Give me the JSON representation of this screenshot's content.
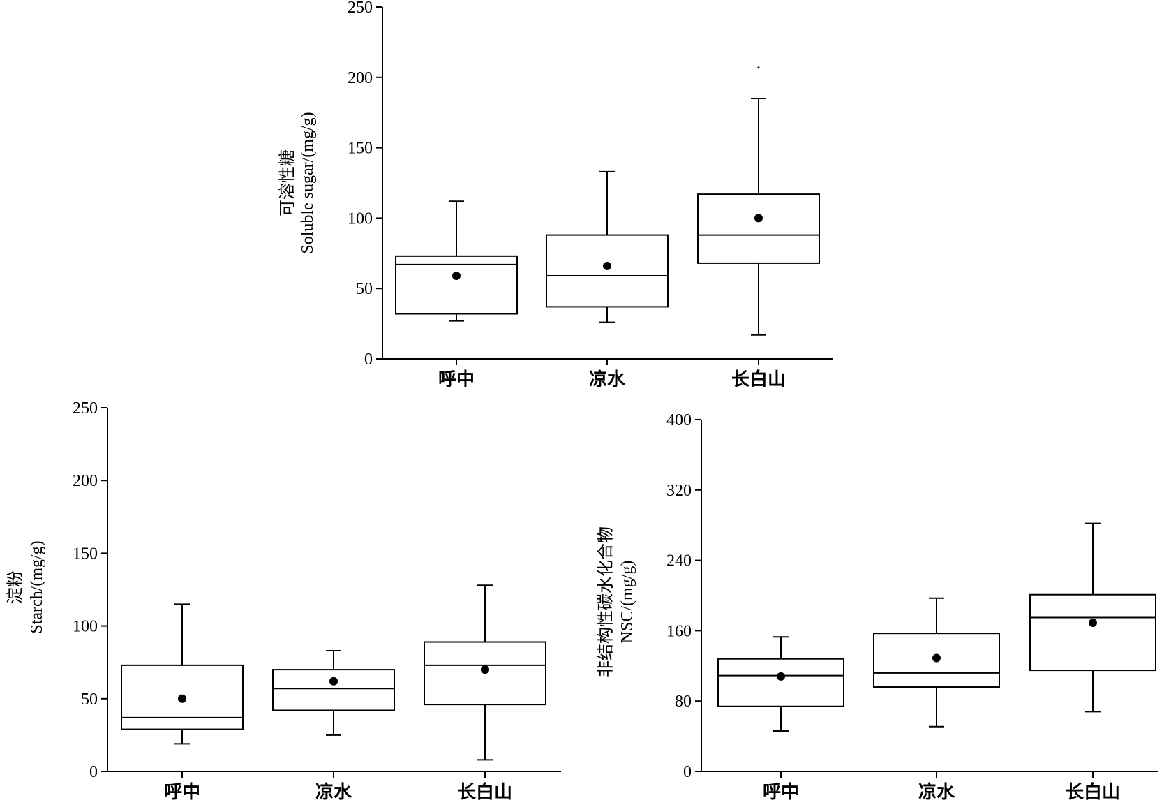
{
  "chart_data": [
    {
      "id": "soluble-sugar",
      "type": "box",
      "title": "",
      "ylabel_cn": "可溶性糖",
      "ylabel": "Soluble sugar/(mg/g)",
      "ylim": [
        0,
        250
      ],
      "yticks": [
        "0",
        "50",
        "100",
        "150",
        "200",
        "250"
      ],
      "categories": [
        "呼中",
        "凉水",
        "长白山"
      ],
      "boxes": [
        {
          "min": 27,
          "q1": 32,
          "median": 67,
          "q3": 73,
          "max": 112,
          "mean": 59
        },
        {
          "min": 26,
          "q1": 37,
          "median": 59,
          "q3": 88,
          "max": 133,
          "mean": 66
        },
        {
          "min": 17,
          "q1": 68,
          "median": 88,
          "q3": 117,
          "max": 185,
          "mean": 100
        }
      ],
      "outliers": [
        {
          "category_index": 2,
          "value": 207
        }
      ]
    },
    {
      "id": "starch",
      "type": "box",
      "title": "",
      "ylabel_cn": "淀粉",
      "ylabel": "Starch/(mg/g)",
      "ylim": [
        0,
        250
      ],
      "yticks": [
        "0",
        "50",
        "100",
        "150",
        "200",
        "250"
      ],
      "categories": [
        "呼中",
        "凉水",
        "长白山"
      ],
      "boxes": [
        {
          "min": 19,
          "q1": 29,
          "median": 37,
          "q3": 73,
          "max": 115,
          "mean": 50
        },
        {
          "min": 25,
          "q1": 42,
          "median": 57,
          "q3": 70,
          "max": 83,
          "mean": 62
        },
        {
          "min": 8,
          "q1": 46,
          "median": 73,
          "q3": 89,
          "max": 128,
          "mean": 70
        }
      ],
      "outliers": []
    },
    {
      "id": "nsc",
      "type": "box",
      "title": "",
      "ylabel_cn": "非结构性碳水化合物",
      "ylabel": "NSC/(mg/g)",
      "ylim": [
        0,
        400
      ],
      "yticks": [
        "0",
        "80",
        "160",
        "240",
        "320",
        "400"
      ],
      "categories": [
        "呼中",
        "凉水",
        "长白山"
      ],
      "boxes": [
        {
          "min": 46,
          "q1": 74,
          "median": 109,
          "q3": 128,
          "max": 153,
          "mean": 108
        },
        {
          "min": 51,
          "q1": 96,
          "median": 112,
          "q3": 157,
          "max": 197,
          "mean": 129
        },
        {
          "min": 68,
          "q1": 115,
          "median": 175,
          "q3": 201,
          "max": 282,
          "mean": 169
        }
      ],
      "outliers": []
    }
  ]
}
